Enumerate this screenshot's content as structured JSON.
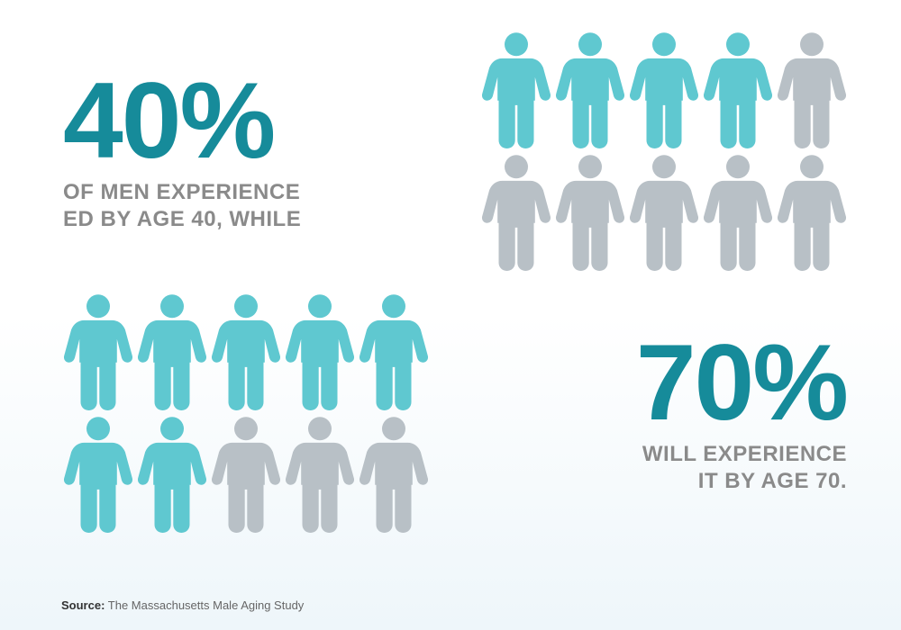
{
  "type": "infographic",
  "background_gradient": [
    "#ffffff",
    "#eef6fa"
  ],
  "colors": {
    "stat_number": "#168b9a",
    "subtext": "#8a8a8a",
    "person_active": "#5fc8d0",
    "person_inactive": "#b8c0c6",
    "source_label": "#333333",
    "source_text": "#666666"
  },
  "typography": {
    "big_number_fontsize": 120,
    "big_number_weight": 800,
    "subtext_fontsize": 24,
    "subtext_weight": 600,
    "source_fontsize": 13
  },
  "person_icon": {
    "width": 78,
    "height": 130
  },
  "stat1": {
    "value": "40%",
    "line1": "OF MEN EXPERIENCE",
    "line2": "ED BY AGE 40, WHILE",
    "active_count": 4,
    "total_count": 10
  },
  "stat2": {
    "value": "70%",
    "line1": "WILL EXPERIENCE",
    "line2": "IT BY AGE 70.",
    "active_count": 7,
    "total_count": 10
  },
  "source": {
    "label": "Source:",
    "text": "The Massachusetts Male Aging Study"
  }
}
